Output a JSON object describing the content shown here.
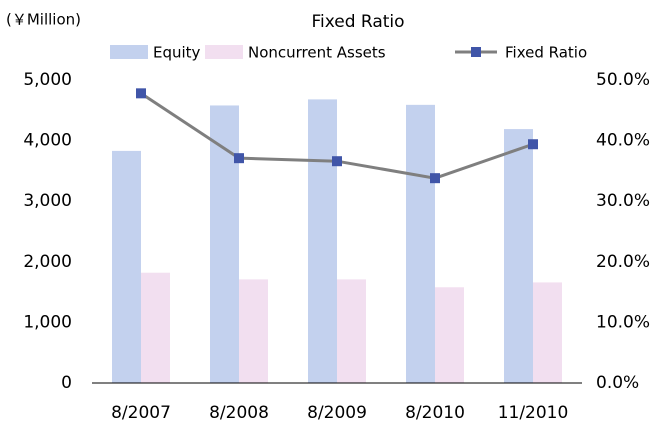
{
  "chart_data": {
    "type": "bar_line",
    "title": "Fixed Ratio",
    "y_label": "(￥Million)",
    "categories": [
      "8/2007",
      "8/2008",
      "8/2009",
      "8/2010",
      "11/2010"
    ],
    "series": [
      {
        "name": "Equity",
        "color": "#c3d1ee",
        "values": [
          3830,
          4580,
          4680,
          4590,
          4190
        ]
      },
      {
        "name": "Noncurrent Assets",
        "color": "#f2dff0",
        "values": [
          1820,
          1710,
          1710,
          1580,
          1660
        ]
      },
      {
        "name": "Fixed Ratio",
        "color": "#7f7f7f",
        "marker_color": "#4055a8",
        "axis": "y2",
        "values": [
          47.8,
          37.1,
          36.6,
          33.8,
          39.4
        ]
      }
    ],
    "ylim": [
      0,
      5000
    ],
    "yticks": [
      0,
      {
        "value": 1000,
        "label": "1,000"
      },
      {
        "value": 2000,
        "label": "2,000"
      },
      {
        "value": 3000,
        "label": "3,000"
      },
      {
        "value": 4000,
        "label": "4,000"
      },
      {
        "value": 5000,
        "label": "5,000"
      }
    ],
    "y2lim": [
      0,
      50
    ],
    "y2ticks": [
      {
        "value": 0,
        "label": "0.0%"
      },
      {
        "value": 10,
        "label": "10.0%"
      },
      {
        "value": 20,
        "label": "20.0%"
      },
      {
        "value": 30,
        "label": "30.0%"
      },
      {
        "value": 40,
        "label": "40.0%"
      },
      {
        "value": 50,
        "label": "50.0%"
      }
    ]
  }
}
